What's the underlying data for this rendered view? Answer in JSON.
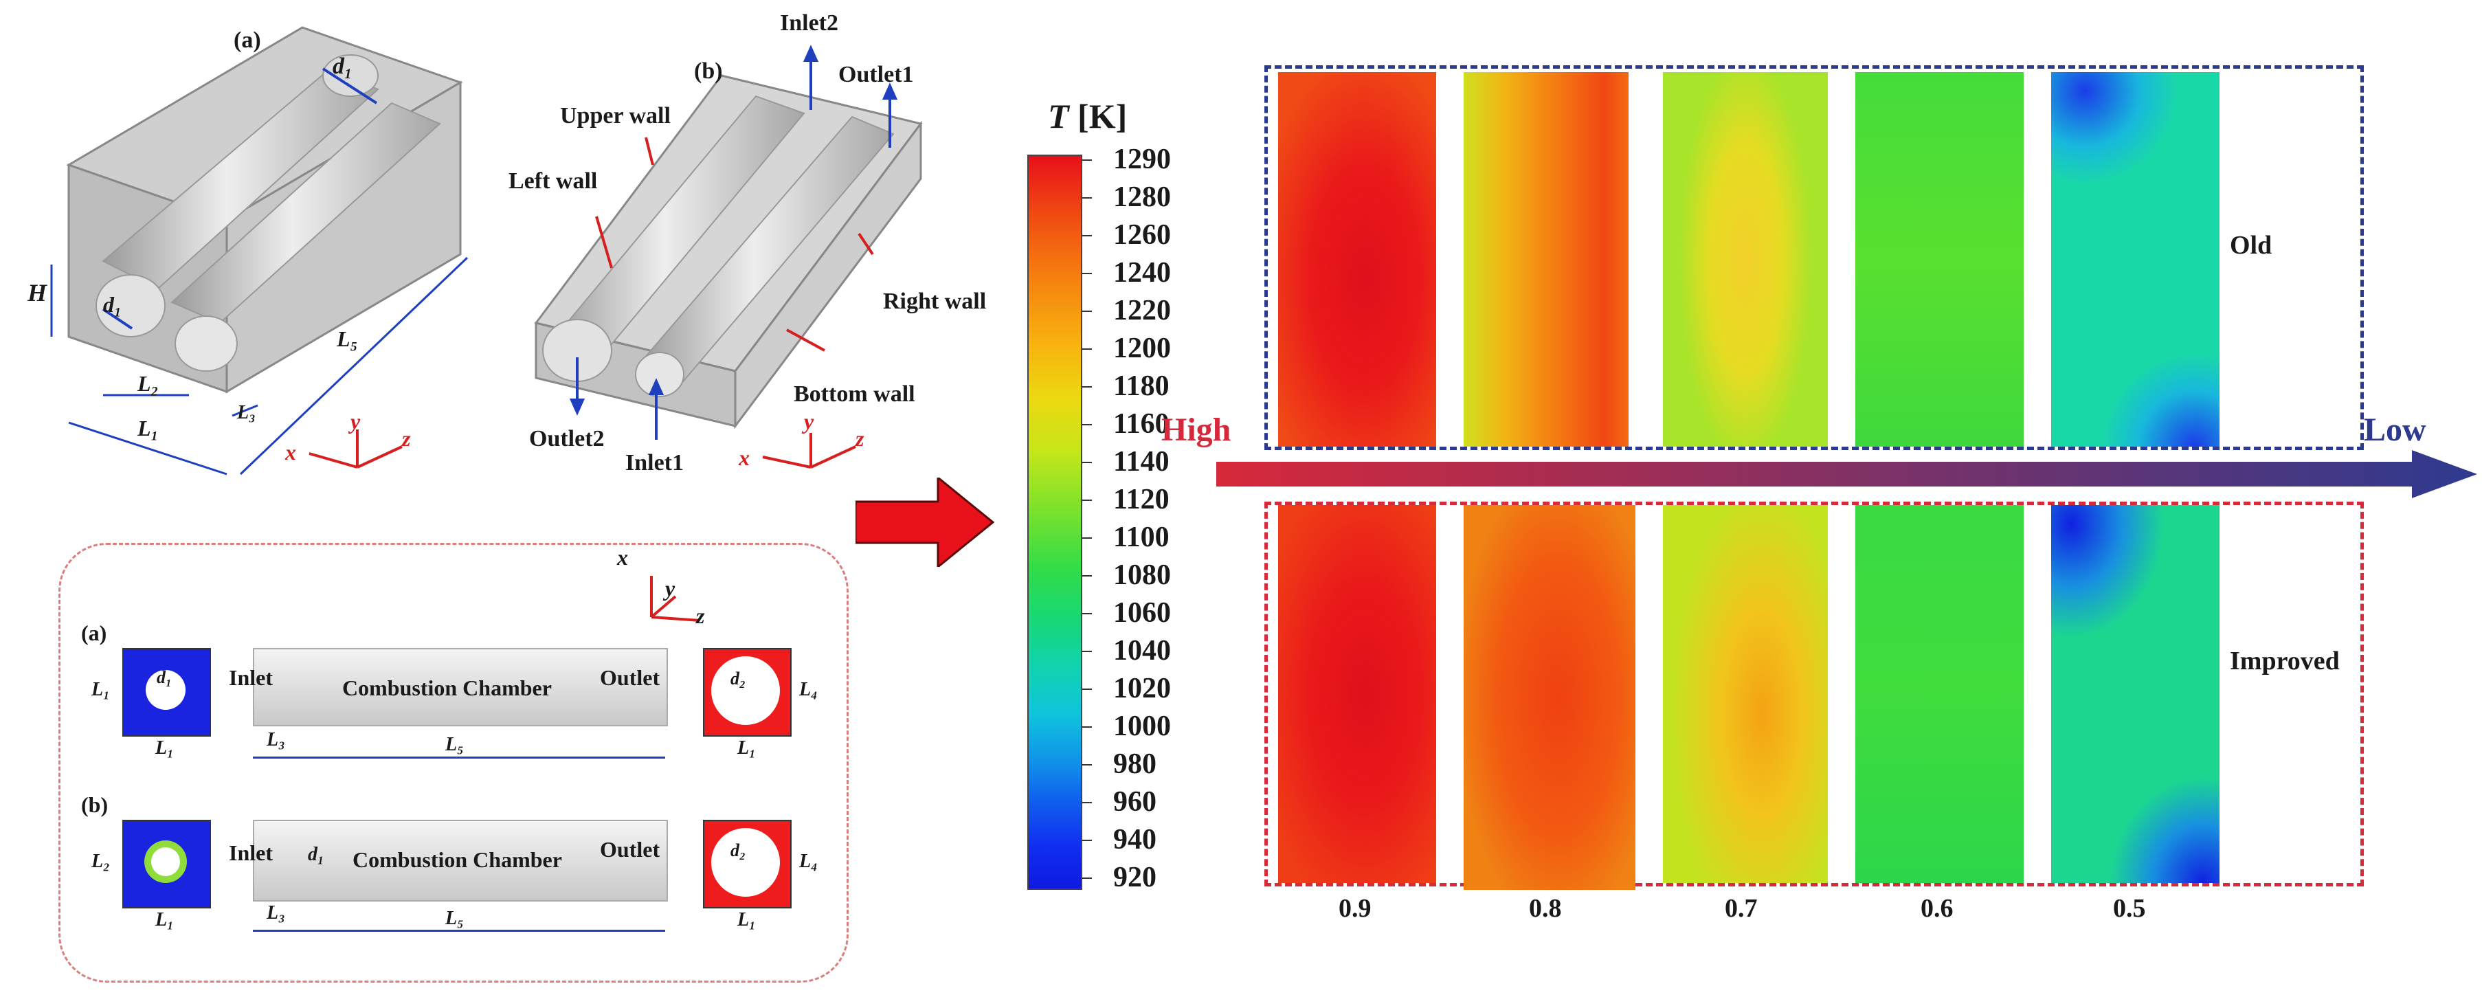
{
  "geometry_a": {
    "panel_label": "(a)",
    "dim_d1_top": "d₁",
    "dim_H": "H",
    "dim_d1": "d₁",
    "dim_L2": "L₂",
    "dim_L1": "L₁",
    "dim_L3": "L₃",
    "dim_L5": "L₅",
    "axes": {
      "x": "x",
      "y": "y",
      "z": "z"
    }
  },
  "geometry_b": {
    "panel_label": "(b)",
    "inlet2": "Inlet2",
    "outlet1": "Outlet1",
    "upper_wall": "Upper wall",
    "left_wall": "Left wall",
    "right_wall": "Right wall",
    "bottom_wall": "Bottom wall",
    "outlet2": "Outlet2",
    "inlet1": "Inlet1",
    "axes": {
      "x": "x",
      "y": "y",
      "z": "z"
    }
  },
  "sections": {
    "axes": {
      "x": "x",
      "y": "y",
      "z": "z"
    },
    "row_a": {
      "label": "(a)",
      "inlet": "Inlet",
      "chamber": "Combustion Chamber",
      "outlet": "Outlet",
      "dim_L1_sq": "L₁",
      "dim_L1_side": "L₁",
      "dim_L3": "L₃",
      "dim_L5": "L₅",
      "dim_L1_out": "L₁",
      "dim_L4": "L₄",
      "dim_d1": "d₁",
      "dim_d2": "d₂"
    },
    "row_b": {
      "label": "(b)",
      "inlet": "Inlet",
      "chamber": "Combustion Chamber",
      "outlet": "Outlet",
      "dim_L2_sq": "L₂",
      "dim_L1_side": "L₁",
      "dim_d1": "d₁",
      "dim_L3": "L₃",
      "dim_L5": "L₅",
      "dim_L1_out": "L₁",
      "dim_L4": "L₄",
      "dim_d2": "d₂"
    }
  },
  "colorbar": {
    "title_symbol": "T",
    "title_unit": "[K]",
    "ticks": [
      "1290",
      "1280",
      "1260",
      "1240",
      "1220",
      "1200",
      "1180",
      "1160",
      "1140",
      "1120",
      "1100",
      "1080",
      "1060",
      "1040",
      "1020",
      "1000",
      "980",
      "960",
      "940",
      "920"
    ],
    "min": 920,
    "max": 1290
  },
  "contours": {
    "high_label": "High",
    "low_label": "Low",
    "old_label": "Old",
    "improved_label": "Improved",
    "ratios": [
      "0.9",
      "0.8",
      "0.7",
      "0.6",
      "0.5"
    ],
    "colors": {
      "old_frame": "#2b3a8f",
      "improved_frame": "#d62b3a",
      "high": "#d6283a",
      "low": "#2e3a8f",
      "arrow_red": "#e8101a"
    }
  }
}
